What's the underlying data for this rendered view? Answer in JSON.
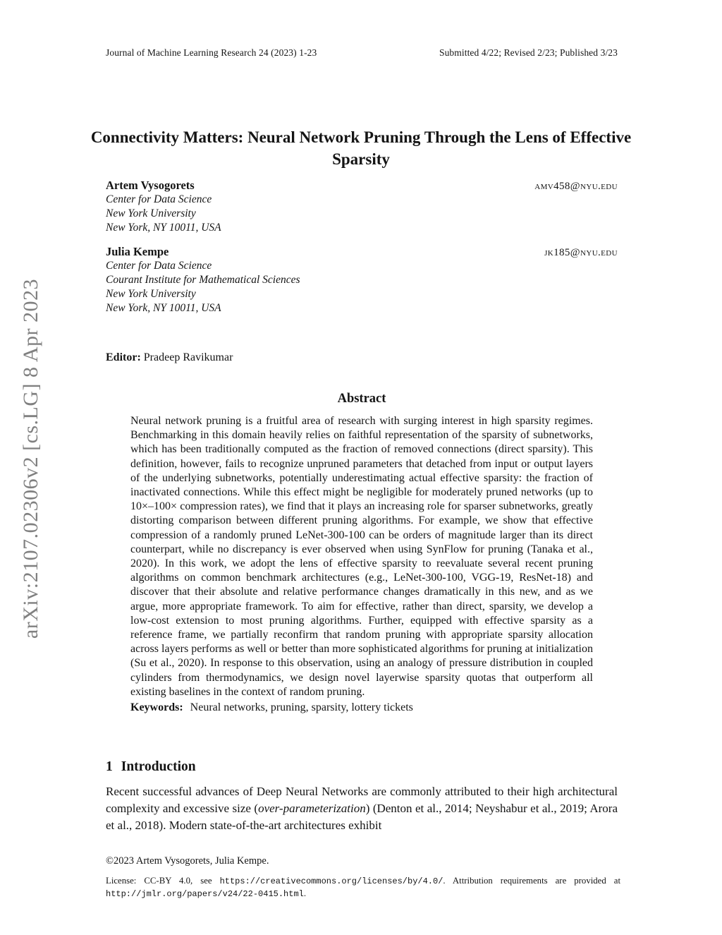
{
  "header": {
    "left": "Journal of Machine Learning Research 24 (2023) 1-23",
    "right": "Submitted 4/22; Revised 2/23; Published 3/23"
  },
  "watermark": "arXiv:2107.02306v2  [cs.LG]  8 Apr 2023",
  "title": "Connectivity Matters: Neural Network Pruning Through the Lens of Effective Sparsity",
  "authors": [
    {
      "name": "Artem Vysogorets",
      "email": "amv458@nyu.edu",
      "affil1": "Center for Data Science",
      "affil2": "New York University",
      "affil3": "New York, NY 10011, USA"
    },
    {
      "name": "Julia Kempe",
      "email": "jk185@nyu.edu",
      "affil1": "Center for Data Science",
      "affil2": "Courant Institute for Mathematical Sciences",
      "affil3": "New York University",
      "affil4": "New York, NY 10011, USA"
    }
  ],
  "editor": {
    "label": "Editor:",
    "name": "Pradeep Ravikumar"
  },
  "abstract": {
    "heading": "Abstract",
    "body": "Neural network pruning is a fruitful area of research with surging interest in high sparsity regimes. Benchmarking in this domain heavily relies on faithful representation of the sparsity of subnetworks, which has been traditionally computed as the fraction of removed connections (direct sparsity). This definition, however, fails to recognize unpruned parameters that detached from input or output layers of the underlying subnetworks, potentially underestimating actual effective sparsity: the fraction of inactivated connections. While this effect might be negligible for moderately pruned networks (up to 10×–100× compression rates), we find that it plays an increasing role for sparser subnetworks, greatly distorting comparison between different pruning algorithms. For example, we show that effective compression of a randomly pruned LeNet-300-100 can be orders of magnitude larger than its direct counterpart, while no discrepancy is ever observed when using SynFlow for pruning (Tanaka et al., 2020). In this work, we adopt the lens of effective sparsity to reevaluate several recent pruning algorithms on common benchmark architectures (e.g., LeNet-300-100, VGG-19, ResNet-18) and discover that their absolute and relative performance changes dramatically in this new, and as we argue, more appropriate framework. To aim for effective, rather than direct, sparsity, we develop a low-cost extension to most pruning algorithms. Further, equipped with effective sparsity as a reference frame, we partially reconfirm that random pruning with appropriate sparsity allocation across layers performs as well or better than more sophisticated algorithms for pruning at initialization (Su et al., 2020). In response to this observation, using an analogy of pressure distribution in coupled cylinders from thermodynamics, we design novel layerwise sparsity quotas that outperform all existing baselines in the context of random pruning.",
    "keywords_label": "Keywords:",
    "keywords": "Neural networks, pruning, sparsity, lottery tickets"
  },
  "section1": {
    "number": "1",
    "title": "Introduction",
    "para_before": "Recent successful advances of Deep Neural Networks are commonly attributed to their high architectural complexity and excessive size (",
    "italic_term": "over-parameterization",
    "para_after": ") (Denton et al., 2014; Neyshabur et al., 2019; Arora et al., 2018). Modern state-of-the-art architectures exhibit"
  },
  "footer": {
    "copyright": "©2023 Artem Vysogorets, Julia Kempe.",
    "license_part1": "License: CC-BY 4.0, see ",
    "license_url1": "https://creativecommons.org/licenses/by/4.0/",
    "license_part2": ". Attribution requirements are provided at ",
    "license_url2": "http://jmlr.org/papers/v24/22-0415.html",
    "license_part3": "."
  }
}
